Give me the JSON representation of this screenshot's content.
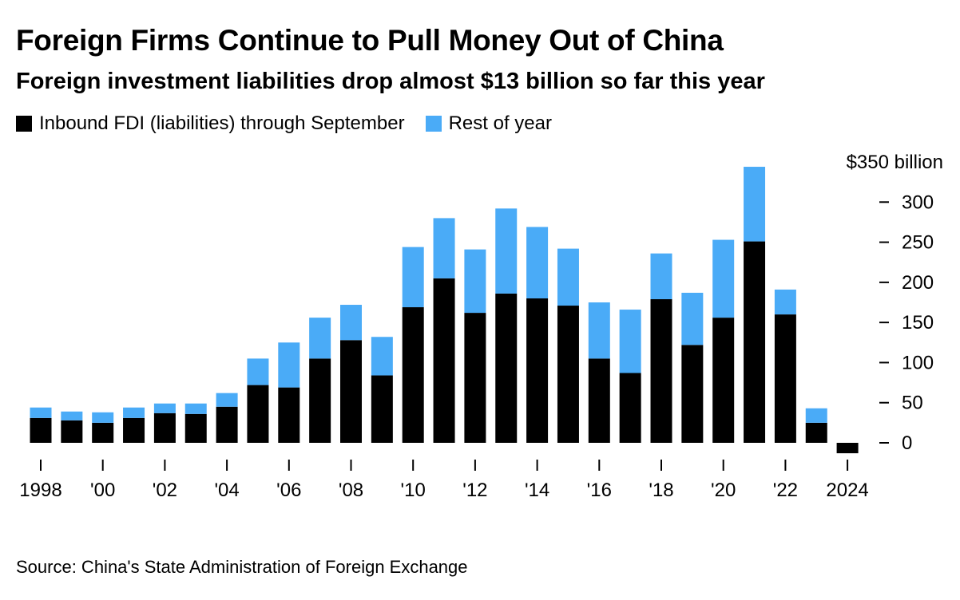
{
  "colors": {
    "through_september": "#000000",
    "rest_of_year": "#4aabf7"
  },
  "source": "Source: China's State Administration of Foreign Exchange",
  "chart_data": {
    "type": "bar",
    "stacked": true,
    "title": "Foreign Firms Continue to Pull Money Out of China",
    "subtitle": "Foreign investment liabilities drop almost $13 billion so far this year",
    "x": [
      1998,
      1999,
      2000,
      2001,
      2002,
      2003,
      2004,
      2005,
      2006,
      2007,
      2008,
      2009,
      2010,
      2011,
      2012,
      2013,
      2014,
      2015,
      2016,
      2017,
      2018,
      2019,
      2020,
      2021,
      2022,
      2023,
      2024
    ],
    "series": [
      {
        "name": "Inbound FDI (liabilities) through September",
        "values": [
          31,
          28,
          25,
          31,
          37,
          36,
          45,
          72,
          69,
          105,
          128,
          84,
          169,
          205,
          162,
          186,
          180,
          171,
          105,
          87,
          179,
          122,
          156,
          251,
          160,
          25,
          -13
        ]
      },
      {
        "name": "Rest of year",
        "values": [
          13,
          11,
          13,
          13,
          12,
          13,
          17,
          33,
          56,
          51,
          44,
          48,
          75,
          75,
          79,
          106,
          89,
          71,
          70,
          79,
          57,
          65,
          97,
          93,
          31,
          18,
          0
        ]
      }
    ],
    "xticks": [
      1998,
      2000,
      2002,
      2004,
      2006,
      2008,
      2010,
      2012,
      2014,
      2016,
      2018,
      2020,
      2022,
      2024
    ],
    "xtick_labels": [
      "1998",
      "'00",
      "'02",
      "'04",
      "'06",
      "'08",
      "'10",
      "'12",
      "'14",
      "'16",
      "'18",
      "'20",
      "'22",
      "2024"
    ],
    "yticks": [
      0,
      50,
      100,
      150,
      200,
      250,
      300,
      350
    ],
    "ytick_labels": [
      "0",
      "50",
      "100",
      "150",
      "200",
      "250",
      "300",
      "$350 billion"
    ],
    "ylim": [
      -13,
      350
    ],
    "legend_position": "top-left",
    "grid": false
  }
}
